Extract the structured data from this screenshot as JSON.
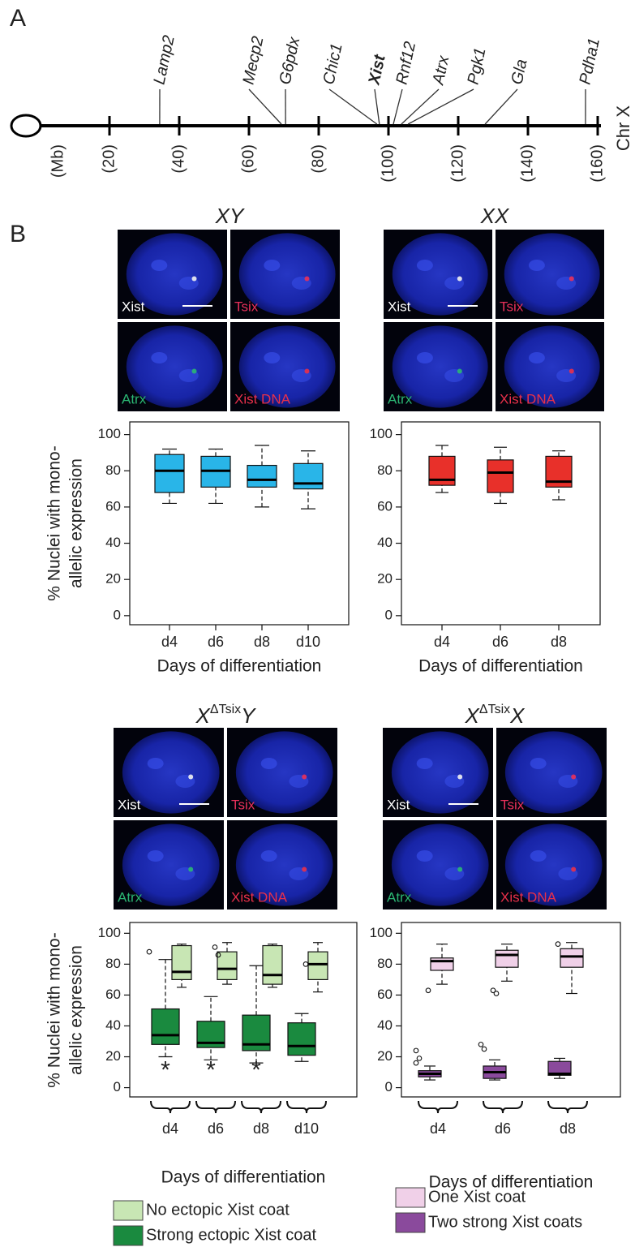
{
  "panel_labels": [
    "A",
    "B"
  ],
  "chromosome": {
    "name": "Chr X",
    "unit_label": "(Mb)",
    "xlim": [
      0,
      160
    ],
    "xticks": [
      {
        "value": 20,
        "label": "(20)"
      },
      {
        "value": 40,
        "label": "(40)"
      },
      {
        "value": 60,
        "label": "(60)"
      },
      {
        "value": 80,
        "label": "(80)"
      },
      {
        "value": 100,
        "label": "(100)"
      },
      {
        "value": 120,
        "label": "(120)"
      },
      {
        "value": 140,
        "label": "(140)"
      },
      {
        "value": 160,
        "label": "(160)"
      }
    ],
    "genes": [
      {
        "name": "Lamp2",
        "position": 34.4
      },
      {
        "name": "Mecp2",
        "position": 69.3
      },
      {
        "name": "G6pdx",
        "position": 70.5
      },
      {
        "name": "Chic1",
        "position": 96.7
      },
      {
        "name": "Xist",
        "position": 97.4,
        "bold": true
      },
      {
        "name": "Rnf12",
        "position": 101.4
      },
      {
        "name": "Atrx",
        "position": 103.7
      },
      {
        "name": "Pgk1",
        "position": 105.6
      },
      {
        "name": "Gla",
        "position": 127.7
      },
      {
        "name": "Pdha1",
        "position": 156.5
      }
    ]
  },
  "microscopy": [
    {
      "title": "XY",
      "channels": [
        {
          "name": "Xist",
          "color": "#ffffff"
        },
        {
          "name": "Tsix",
          "color": "#e8305a"
        },
        {
          "name": "Atrx",
          "color": "#2bb673"
        },
        {
          "name": "Xist DNA",
          "color": "#e8304a"
        }
      ]
    },
    {
      "title": "XX",
      "channels": [
        {
          "name": "Xist",
          "color": "#ffffff"
        },
        {
          "name": "Tsix",
          "color": "#e8305a"
        },
        {
          "name": "Atrx",
          "color": "#2bb673"
        },
        {
          "name": "Xist DNA",
          "color": "#e8304a"
        }
      ]
    },
    {
      "title_parts": {
        "base": "X",
        "superscript": "ΔTsix",
        "suffix": "Y"
      },
      "channels": [
        {
          "name": "Xist",
          "color": "#ffffff"
        },
        {
          "name": "Tsix",
          "color": "#e8305a"
        },
        {
          "name": "Atrx",
          "color": "#2bb673"
        },
        {
          "name": "Xist DNA",
          "color": "#e8304a"
        }
      ]
    },
    {
      "title_parts": {
        "base": "X",
        "superscript": "ΔTsix",
        "suffix": "X"
      },
      "channels": [
        {
          "name": "Xist",
          "color": "#ffffff"
        },
        {
          "name": "Tsix",
          "color": "#e8305a"
        },
        {
          "name": "Atrx",
          "color": "#2bb673"
        },
        {
          "name": "Xist DNA",
          "color": "#e8304a"
        }
      ]
    }
  ],
  "chart_data": [
    {
      "type": "box",
      "ylabel_lines": [
        "% Nuclei with mono-",
        "allelic expression"
      ],
      "xlabel": "Days of differentiation",
      "categories": [
        "d4",
        "d6",
        "d8",
        "d10"
      ],
      "ylim": [
        -5,
        107
      ],
      "yticks": [
        0,
        20,
        40,
        60,
        80,
        100
      ],
      "series": [
        {
          "color": "#29b5e8",
          "low": [
            62,
            62,
            60,
            59
          ],
          "q1": [
            68,
            71,
            71,
            70
          ],
          "median": [
            80,
            80,
            75,
            73
          ],
          "q3": [
            89,
            88,
            83,
            84
          ],
          "high": [
            92,
            92,
            94,
            91
          ]
        }
      ]
    },
    {
      "type": "box",
      "xlabel": "Days of differentiation",
      "categories": [
        "d4",
        "d6",
        "d8"
      ],
      "ylim": [
        -5,
        107
      ],
      "yticks": [
        0,
        20,
        40,
        60,
        80,
        100
      ],
      "series": [
        {
          "color": "#e8302a",
          "low": [
            68,
            62,
            64
          ],
          "q1": [
            72,
            68,
            71
          ],
          "median": [
            75,
            79,
            74
          ],
          "q3": [
            88,
            86,
            88
          ],
          "high": [
            94,
            93,
            91
          ]
        }
      ]
    },
    {
      "type": "box",
      "ylabel_lines": [
        "% Nuclei with mono-",
        "allelic expression"
      ],
      "xlabel": "Days of differentiation",
      "categories": [
        "d4",
        "d6",
        "d8",
        "d10"
      ],
      "ylim": [
        -6,
        107
      ],
      "yticks": [
        0,
        20,
        40,
        60,
        80,
        100
      ],
      "annotations": [
        "*",
        "*",
        "*",
        null
      ],
      "series": [
        {
          "name": "No ectopic Xist coat",
          "color": "#c8e6b4",
          "low": [
            65,
            67,
            65,
            62
          ],
          "q1": [
            70,
            70,
            67,
            70
          ],
          "median": [
            75,
            77,
            73,
            80
          ],
          "q3": [
            92,
            88,
            92,
            88
          ],
          "high": [
            93,
            94,
            93,
            94
          ],
          "outliers": [
            [],
            [
              91,
              86
            ],
            [],
            [
              80
            ]
          ]
        },
        {
          "name": "Strong ectopic Xist coat",
          "color": "#1a8a3f",
          "low": [
            20,
            18,
            16,
            17
          ],
          "q1": [
            28,
            26,
            24,
            21
          ],
          "median": [
            34,
            29,
            28,
            27
          ],
          "q3": [
            51,
            43,
            47,
            42
          ],
          "high": [
            83,
            59,
            79,
            48
          ],
          "outliers": [
            [
              88
            ],
            [],
            [],
            []
          ]
        }
      ]
    },
    {
      "type": "box",
      "xlabel": "Days of differentiation",
      "categories": [
        "d4",
        "d6",
        "d8"
      ],
      "ylim": [
        -6,
        107
      ],
      "yticks": [
        0,
        20,
        40,
        60,
        80,
        100
      ],
      "series": [
        {
          "name": "One Xist coat",
          "color": "#f0d0e8",
          "low": [
            67,
            69,
            61
          ],
          "q1": [
            76,
            78,
            78
          ],
          "median": [
            82,
            86,
            85
          ],
          "q3": [
            84,
            89,
            90
          ],
          "high": [
            93,
            93,
            94
          ],
          "outliers": [
            [
              63
            ],
            [
              63,
              61
            ],
            [
              93
            ]
          ]
        },
        {
          "name": "Two strong Xist coats",
          "color": "#8a4a9c",
          "low": [
            5,
            5,
            6
          ],
          "q1": [
            7,
            6,
            8
          ],
          "median": [
            9,
            10,
            9
          ],
          "q3": [
            11,
            14,
            17
          ],
          "high": [
            14,
            18,
            19
          ],
          "outliers": [
            [
              24,
              19,
              16
            ],
            [
              28,
              25
            ],
            []
          ]
        }
      ]
    }
  ]
}
